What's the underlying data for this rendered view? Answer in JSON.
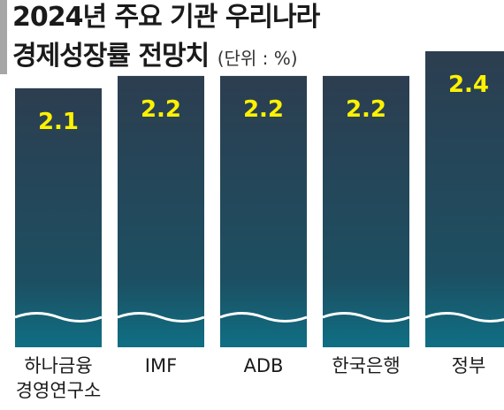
{
  "title_line1": "2024년 주요 기관 우리나라",
  "title_line2": "경제성장률 전망치",
  "unit": "(단위 : %)",
  "colors": {
    "bar_top": "#2c3e50",
    "bar_bottom": "#0f6f84",
    "value_text": "#fff200",
    "wave": "#ffffff"
  },
  "chart_data": {
    "type": "bar",
    "title": "2024년 주요 기관 우리나라 경제성장률 전망치",
    "unit": "%",
    "categories": [
      [
        "하나금융",
        "경영연구소"
      ],
      [
        "IMF"
      ],
      [
        "ADB"
      ],
      [
        "한국은행"
      ],
      [
        "정부"
      ]
    ],
    "values": [
      2.1,
      2.2,
      2.2,
      2.2,
      2.4
    ],
    "value_labels": [
      "2.1",
      "2.2",
      "2.2",
      "2.2",
      "2.4"
    ],
    "ylim": [
      0,
      2.4
    ],
    "grid": false,
    "legend": "none"
  }
}
